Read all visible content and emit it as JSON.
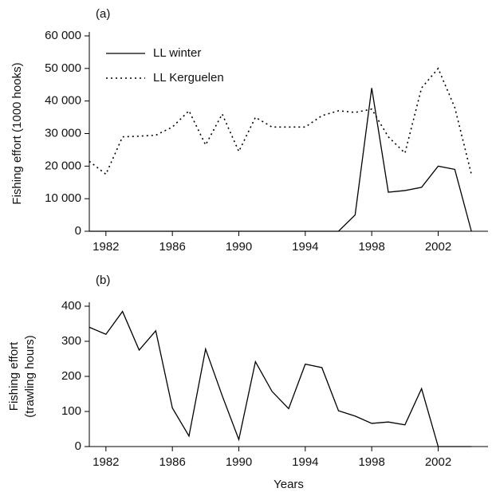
{
  "chart_data": [
    {
      "type": "line",
      "panel_label": "(a)",
      "ylabel": [
        "Fishing effort (1000 hooks)"
      ],
      "x": [
        1981,
        1982,
        1983,
        1984,
        1985,
        1986,
        1987,
        1988,
        1989,
        1990,
        1991,
        1992,
        1993,
        1994,
        1995,
        1996,
        1997,
        1998,
        1999,
        2000,
        2001,
        2002,
        2003,
        2004
      ],
      "series": [
        {
          "name": "LL winter",
          "color": "#000000",
          "dash": false,
          "values": [
            0,
            0,
            0,
            0,
            0,
            0,
            0,
            0,
            0,
            0,
            0,
            0,
            0,
            0,
            0,
            0,
            5000,
            44000,
            12000,
            12500,
            13500,
            20000,
            19000,
            0
          ]
        },
        {
          "name": "LL Kerguelen",
          "color": "#000000",
          "dash": true,
          "values": [
            21500,
            17500,
            29000,
            29200,
            29500,
            32000,
            37000,
            26500,
            36000,
            24500,
            35000,
            32000,
            32000,
            32000,
            35500,
            37000,
            36500,
            37500,
            29000,
            24000,
            44000,
            50000,
            38000,
            17500
          ]
        }
      ],
      "xlim": [
        1981,
        2005
      ],
      "xticks": [
        1982,
        1986,
        1990,
        1994,
        1998,
        2002
      ],
      "ylim": [
        0,
        60000
      ],
      "yticks": [
        0,
        {
          "value": 10000,
          "label": "10 000"
        },
        {
          "value": 20000,
          "label": "20 000"
        },
        {
          "value": 30000,
          "label": "30 000"
        },
        {
          "value": 40000,
          "label": "40 000"
        },
        {
          "value": 50000,
          "label": "50 000"
        },
        {
          "value": 60000,
          "label": "60 000"
        }
      ],
      "legend": "upper left"
    },
    {
      "type": "line",
      "panel_label": "(b)",
      "ylabel": [
        "Fishing effort",
        "(trawling hours)"
      ],
      "xlabel": "Years",
      "x": [
        1981,
        1982,
        1983,
        1984,
        1985,
        1986,
        1987,
        1988,
        1989,
        1990,
        1991,
        1992,
        1993,
        1994,
        1995,
        1996,
        1997,
        1998,
        1999,
        2000,
        2001,
        2002,
        2003,
        2004
      ],
      "series": [
        {
          "color": "#000000",
          "dash": false,
          "values": [
            340,
            320,
            385,
            275,
            330,
            110,
            30,
            278,
            145,
            20,
            242,
            157,
            108,
            235,
            225,
            102,
            87,
            66,
            70,
            62,
            165,
            0,
            0,
            0
          ]
        }
      ],
      "xlim": [
        1981,
        2005
      ],
      "xticks": [
        1982,
        1986,
        1990,
        1994,
        1998,
        2002
      ],
      "ylim": [
        0,
        400
      ],
      "yticks": [
        0,
        100,
        200,
        300,
        400
      ]
    }
  ]
}
